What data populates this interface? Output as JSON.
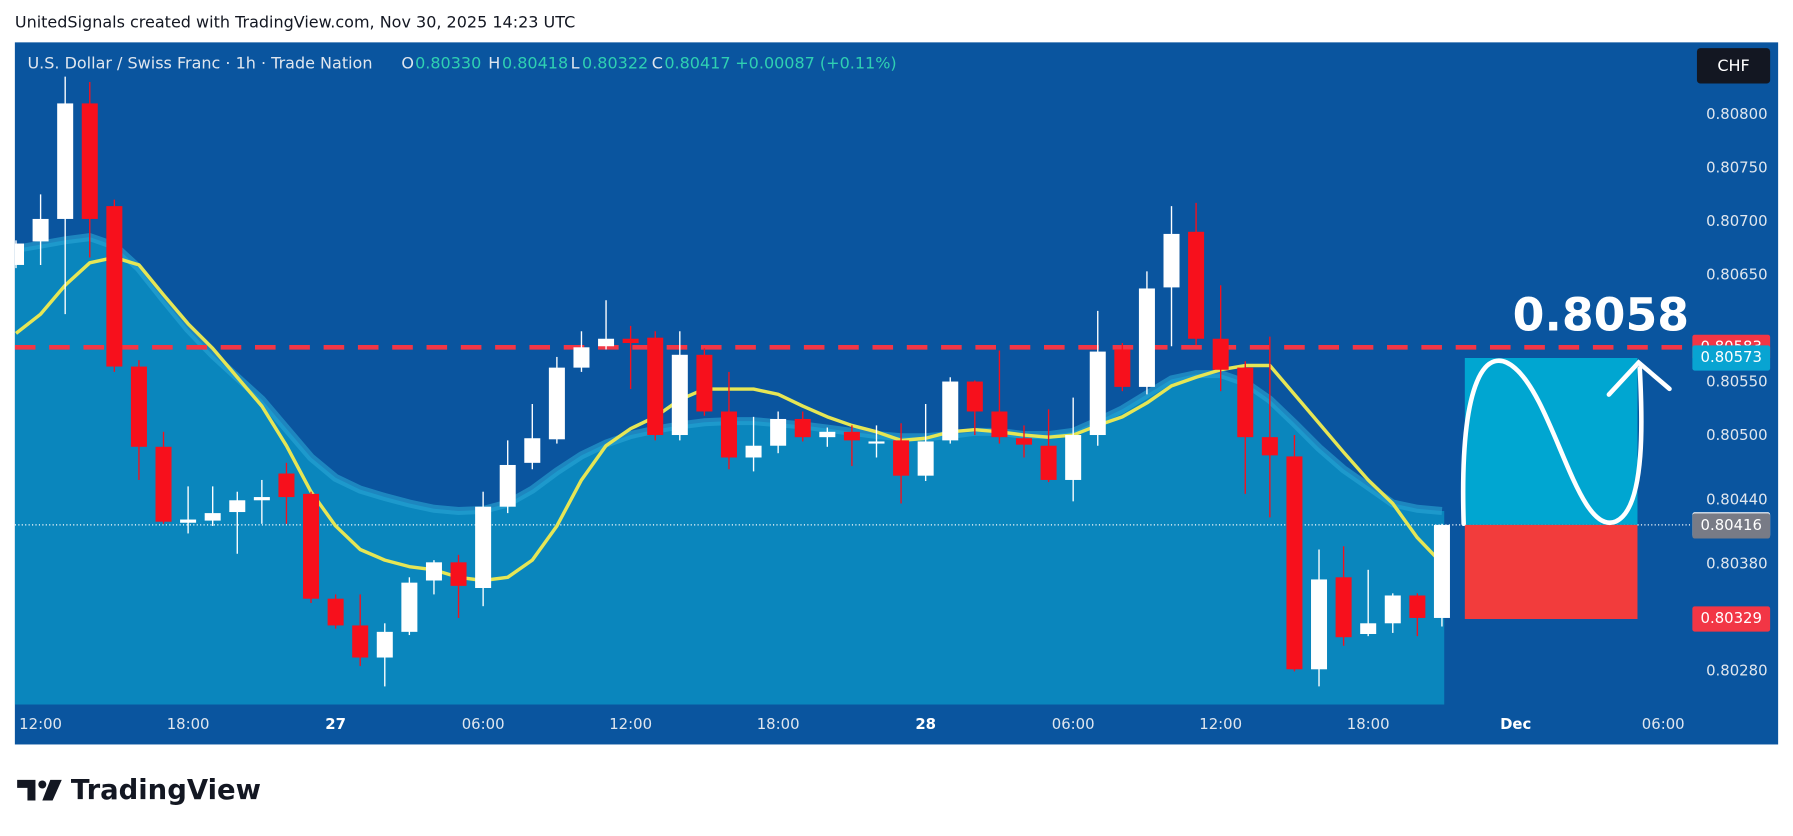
{
  "header": {
    "text": "UnitedSignals created with TradingView.com, Nov 30, 2025 14:23 UTC"
  },
  "chart_data": {
    "type": "candlestick",
    "symbol": "U.S. Dollar / Swiss Franc · 1h · Trade Nation",
    "legend": {
      "open_label": "O",
      "open": "0.80330",
      "high_label": "H",
      "high": "0.80418",
      "low_label": "L",
      "low": "0.80322",
      "close_label": "C",
      "close": "0.80417",
      "change": "+0.00087 (+0.11%)"
    },
    "currency": "CHF",
    "categories": [
      null,
      "12:00",
      null,
      null,
      null,
      null,
      null,
      "18:00",
      null,
      null,
      null,
      null,
      null,
      "27",
      null,
      null,
      null,
      null,
      null,
      "06:00",
      null,
      null,
      null,
      null,
      null,
      "12:00",
      null,
      null,
      null,
      null,
      null,
      "18:00",
      null,
      null,
      null,
      null,
      null,
      "28",
      null,
      null,
      null,
      null,
      null,
      "06:00",
      null,
      null,
      null,
      null,
      null,
      "12:00",
      null,
      null,
      null,
      null,
      null,
      "18:00",
      null,
      null,
      null,
      null,
      null,
      "Dec",
      null,
      null,
      null,
      null,
      null,
      "06:00"
    ],
    "open": [
      0.8066,
      0.80682,
      0.80703,
      0.80811,
      0.80715,
      0.80565,
      0.8049,
      0.80419,
      0.80421,
      0.80429,
      0.8044,
      0.80465,
      0.80446,
      0.80348,
      0.80323,
      0.80293,
      0.80317,
      0.80365,
      0.80382,
      0.80358,
      0.80434,
      0.80475,
      0.80497,
      0.80564,
      0.80584,
      0.80591,
      0.80592,
      0.80501,
      0.80576,
      0.80523,
      0.8048,
      0.80491,
      0.80516,
      0.80499,
      0.80504,
      0.80493,
      0.80496,
      0.80463,
      0.80496,
      0.80551,
      0.80523,
      0.80498,
      0.80491,
      0.80459,
      0.80501,
      0.80581,
      0.80546,
      0.80639,
      0.80691,
      0.80591,
      0.80564,
      0.80499,
      0.80481,
      0.80282,
      0.80368,
      0.80315,
      0.80325,
      0.80351,
      0.8033,
      null,
      null,
      null,
      null,
      null,
      null,
      null,
      null,
      null
    ],
    "high": [
      0.80683,
      0.80726,
      0.80836,
      0.80831,
      0.80721,
      0.80571,
      0.80504,
      0.80453,
      0.80453,
      0.80448,
      0.80459,
      0.80475,
      0.80448,
      0.80352,
      0.80352,
      0.80325,
      0.80368,
      0.80384,
      0.80389,
      0.80448,
      0.80496,
      0.8053,
      0.80574,
      0.80598,
      0.80627,
      0.80603,
      0.80598,
      0.80598,
      0.80582,
      0.8056,
      0.80518,
      0.80523,
      0.80523,
      0.80508,
      0.8051,
      0.8051,
      0.80512,
      0.8053,
      0.80555,
      0.80552,
      0.8058,
      0.8051,
      0.80525,
      0.80536,
      0.80617,
      0.80587,
      0.80654,
      0.80715,
      0.80718,
      0.80641,
      0.8057,
      0.80593,
      0.80501,
      0.80394,
      0.80397,
      0.80375,
      0.80353,
      0.80353,
      0.80418,
      null,
      null,
      null,
      null,
      null,
      null,
      null,
      null,
      null
    ],
    "low": [
      0.80657,
      0.8066,
      0.80614,
      0.80667,
      0.8056,
      0.80459,
      0.80418,
      0.80409,
      0.80416,
      0.8039,
      0.80418,
      0.80418,
      0.80344,
      0.8032,
      0.80285,
      0.80266,
      0.80314,
      0.80352,
      0.8033,
      0.80341,
      0.80428,
      0.80469,
      0.80493,
      0.8056,
      0.80581,
      0.80544,
      0.80496,
      0.80496,
      0.80519,
      0.80469,
      0.80467,
      0.80484,
      0.80495,
      0.8049,
      0.80472,
      0.8048,
      0.80437,
      0.80458,
      0.80493,
      0.80501,
      0.80493,
      0.8048,
      0.80457,
      0.80439,
      0.80491,
      0.80542,
      0.80539,
      0.80584,
      0.80585,
      0.80542,
      0.80446,
      0.80424,
      0.8028,
      0.80266,
      0.80304,
      0.80313,
      0.80316,
      0.80313,
      0.80322,
      null,
      null,
      null,
      null,
      null,
      null,
      null,
      null,
      null
    ],
    "close": [
      0.8068,
      0.80703,
      0.80811,
      0.80703,
      0.80565,
      0.8049,
      0.8042,
      0.80422,
      0.80428,
      0.8044,
      0.80443,
      0.80443,
      0.80348,
      0.80323,
      0.80293,
      0.80317,
      0.80363,
      0.80382,
      0.8036,
      0.80434,
      0.80473,
      0.80498,
      0.80564,
      0.80583,
      0.80591,
      0.80587,
      0.80501,
      0.80576,
      0.80523,
      0.8048,
      0.80491,
      0.80516,
      0.80499,
      0.80504,
      0.80496,
      0.80495,
      0.80463,
      0.80495,
      0.80551,
      0.80523,
      0.80499,
      0.80492,
      0.80459,
      0.80501,
      0.80579,
      0.80546,
      0.80638,
      0.80689,
      0.80591,
      0.80562,
      0.80499,
      0.80482,
      0.80282,
      0.80366,
      0.80312,
      0.80325,
      0.80351,
      0.8033,
      0.80417,
      null,
      null,
      null,
      null,
      null,
      null,
      null,
      null,
      null
    ],
    "up_color": "#ffffff",
    "down_color": "#f7101c",
    "overlays": [
      {
        "color": "#0a86bd",
        "area": true,
        "values": [
          0.80675,
          0.80679,
          0.80683,
          0.80686,
          0.80678,
          0.80657,
          0.80628,
          0.806,
          0.80576,
          0.80555,
          0.80534,
          0.80507,
          0.8048,
          0.80461,
          0.8045,
          0.80443,
          0.80437,
          0.80432,
          0.8043,
          0.80431,
          0.80437,
          0.8045,
          0.80467,
          0.80482,
          0.80493,
          0.80501,
          0.80506,
          0.8051,
          0.80513,
          0.80514,
          0.80514,
          0.80512,
          0.8051,
          0.80507,
          0.80504,
          0.80501,
          0.80499,
          0.80499,
          0.80501,
          0.80504,
          0.80504,
          0.80501,
          0.80501,
          0.80504,
          0.80514,
          0.80525,
          0.80539,
          0.80553,
          0.80558,
          0.80558,
          0.8055,
          0.80534,
          0.80512,
          0.80489,
          0.80469,
          0.80453,
          0.80437,
          0.80432,
          0.8043,
          null,
          null,
          null,
          null,
          null,
          null,
          null,
          null,
          null
        ]
      },
      {
        "color": "#e6e655",
        "area": false,
        "values": [
          0.80596,
          0.80614,
          0.80641,
          0.80662,
          0.80667,
          0.8066,
          0.80632,
          0.80605,
          0.80582,
          0.80555,
          0.80528,
          0.80491,
          0.80448,
          0.80416,
          0.80394,
          0.80384,
          0.80378,
          0.80375,
          0.80368,
          0.80365,
          0.80368,
          0.80384,
          0.80416,
          0.80459,
          0.80491,
          0.80507,
          0.80518,
          0.80534,
          0.80544,
          0.80544,
          0.80544,
          0.80539,
          0.80528,
          0.80518,
          0.8051,
          0.80504,
          0.80496,
          0.80498,
          0.80504,
          0.80506,
          0.80504,
          0.80501,
          0.80499,
          0.80501,
          0.8051,
          0.80518,
          0.80531,
          0.80547,
          0.80555,
          0.80562,
          0.80566,
          0.80566,
          0.80539,
          0.80512,
          0.80485,
          0.80459,
          0.80437,
          0.80405,
          0.80381,
          null,
          null,
          null,
          null,
          null,
          null,
          null,
          null,
          null
        ]
      }
    ],
    "ylim": [
      0.80247,
      0.80867
    ],
    "yticks": [
      {
        "value": 0.808,
        "label": "0.80800"
      },
      {
        "value": 0.8075,
        "label": "0.80750"
      },
      {
        "value": 0.807,
        "label": "0.80700"
      },
      {
        "value": 0.8065,
        "label": "0.80650"
      },
      {
        "value": 0.8055,
        "label": "0.80550"
      },
      {
        "value": 0.805,
        "label": "0.80500"
      },
      {
        "value": 0.8044,
        "label": "0.80440"
      },
      {
        "value": 0.8038,
        "label": "0.80380"
      },
      {
        "value": 0.8028,
        "label": "0.80280"
      }
    ],
    "grid": false,
    "price_labels": [
      {
        "value": 0.80583,
        "color": "#f23645",
        "line": "dashed"
      },
      {
        "value": 0.80573,
        "color": "#08a4d2",
        "line": "none"
      },
      {
        "value": 0.80417,
        "color": "#ffffff",
        "line": "dotted"
      },
      {
        "value": 0.80416,
        "color": "#787b86",
        "line": "none"
      },
      {
        "value": 0.80329,
        "color": "#f23645",
        "line": "none"
      }
    ],
    "annotation": "0.8058"
  },
  "footer": {
    "logo": "TradingView"
  }
}
